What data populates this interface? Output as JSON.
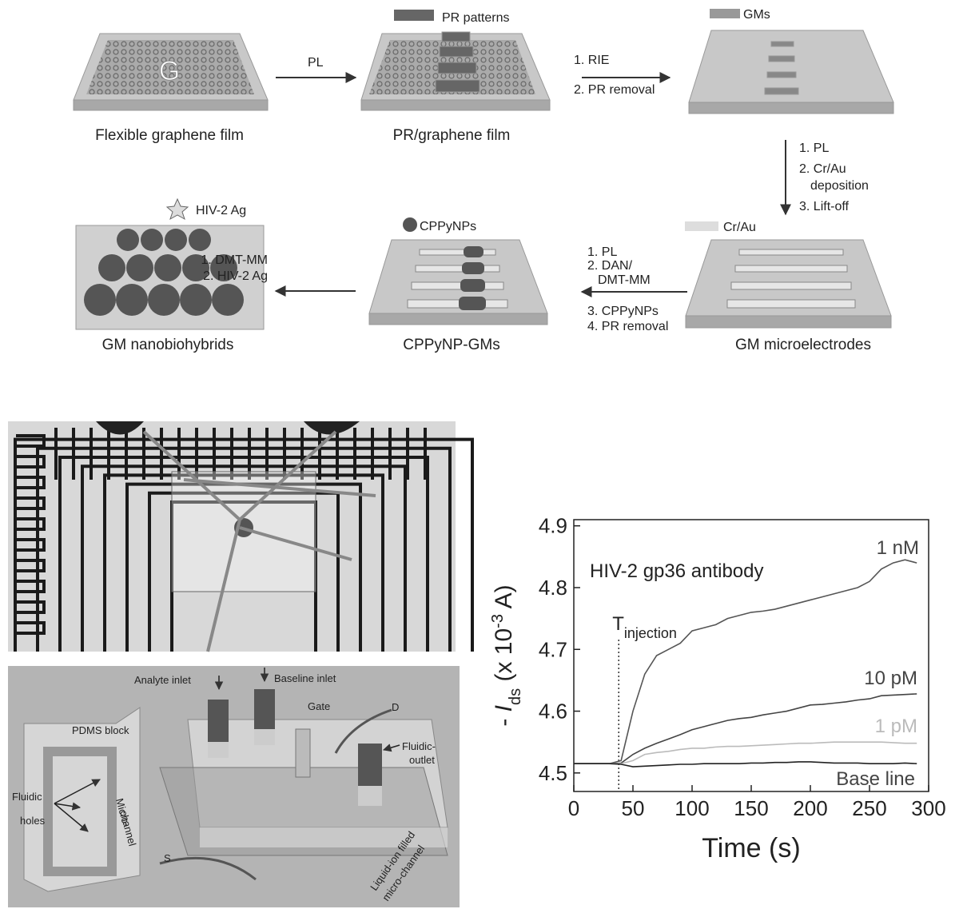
{
  "process": {
    "panels": [
      {
        "caption": "Flexible graphene film",
        "mark": "G"
      },
      {
        "caption": "PR/graphene film"
      },
      {
        "caption": "GM microelectrodes"
      },
      {
        "caption": "CPPyNP-GMs"
      },
      {
        "caption": "GM nanobiohybrids"
      }
    ],
    "legends": [
      "PR patterns",
      "GMs",
      "Cr/Au",
      "CPPyNPs",
      "HIV-2 Ag"
    ],
    "steps": [
      [
        "PL"
      ],
      [
        "1. RIE",
        "2. PR removal"
      ],
      [
        "1. PL",
        "2. Cr/Au",
        "deposition",
        "3. Lift-off"
      ],
      [
        "1. PL",
        "2. DAN/",
        "DMT-MM",
        "3. CPPyNPs",
        "4. PR removal"
      ],
      [
        "1. DMT-MM",
        "2. HIV-2 Ag"
      ]
    ]
  },
  "device": {
    "labels": [
      "Analyte inlet",
      "Baseline inlet",
      "Gate",
      "D",
      "Fluidic-",
      "outlet",
      "PDMS block",
      "Fluidic",
      "holes",
      "Micro-",
      "channel",
      "S",
      "Liquid-ion filled",
      "micro-channel"
    ]
  },
  "chart_data": {
    "type": "line",
    "annotation": "HIV-2 gp36 antibody",
    "injection": {
      "symbol": "T",
      "subscript": "injection",
      "x": 38
    },
    "x_label": "Time (s)",
    "y_label": {
      "prefix": "- ",
      "symbol": "I",
      "subscript": "ds",
      "unit_start": " (x 10",
      "superscript": "-3",
      "unit_end": " A)"
    },
    "x": [
      0,
      10,
      20,
      30,
      40,
      50,
      60,
      70,
      80,
      90,
      100,
      110,
      120,
      130,
      140,
      150,
      160,
      170,
      180,
      190,
      200,
      210,
      220,
      230,
      240,
      250,
      260,
      270,
      280,
      290
    ],
    "series": [
      {
        "name": "1 nM",
        "color": "#555555",
        "values": [
          4.515,
          4.515,
          4.515,
          4.515,
          4.52,
          4.6,
          4.66,
          4.69,
          4.7,
          4.71,
          4.73,
          4.735,
          4.74,
          4.75,
          4.755,
          4.76,
          4.762,
          4.765,
          4.77,
          4.775,
          4.78,
          4.785,
          4.79,
          4.795,
          4.8,
          4.81,
          4.83,
          4.84,
          4.845,
          4.84
        ]
      },
      {
        "name": "10 pM",
        "color": "#444444",
        "values": [
          4.515,
          4.515,
          4.515,
          4.515,
          4.516,
          4.53,
          4.54,
          4.548,
          4.555,
          4.562,
          4.57,
          4.575,
          4.58,
          4.585,
          4.588,
          4.59,
          4.594,
          4.597,
          4.6,
          4.605,
          4.61,
          4.611,
          4.613,
          4.615,
          4.618,
          4.62,
          4.625,
          4.626,
          4.627,
          4.628
        ]
      },
      {
        "name": "1 pM",
        "color": "#bbbbbb",
        "values": [
          4.515,
          4.515,
          4.515,
          4.515,
          4.515,
          4.52,
          4.53,
          4.533,
          4.535,
          4.538,
          4.54,
          4.54,
          4.542,
          4.543,
          4.543,
          4.544,
          4.545,
          4.546,
          4.547,
          4.548,
          4.548,
          4.549,
          4.55,
          4.55,
          4.55,
          4.55,
          4.55,
          4.549,
          4.548,
          4.548
        ]
      },
      {
        "name": "Base line",
        "color": "#222222",
        "values": [
          4.515,
          4.515,
          4.515,
          4.515,
          4.514,
          4.51,
          4.511,
          4.512,
          4.513,
          4.514,
          4.514,
          4.515,
          4.515,
          4.515,
          4.515,
          4.516,
          4.516,
          4.517,
          4.517,
          4.518,
          4.518,
          4.517,
          4.516,
          4.516,
          4.516,
          4.515,
          4.515,
          4.515,
          4.516,
          4.515
        ]
      }
    ],
    "xlim": [
      0,
      300
    ],
    "ylim": [
      4.47,
      4.91
    ],
    "xticks": [
      0,
      50,
      100,
      150,
      200,
      250,
      300
    ],
    "yticks": [
      4.5,
      4.6,
      4.7,
      4.8,
      4.9
    ]
  }
}
